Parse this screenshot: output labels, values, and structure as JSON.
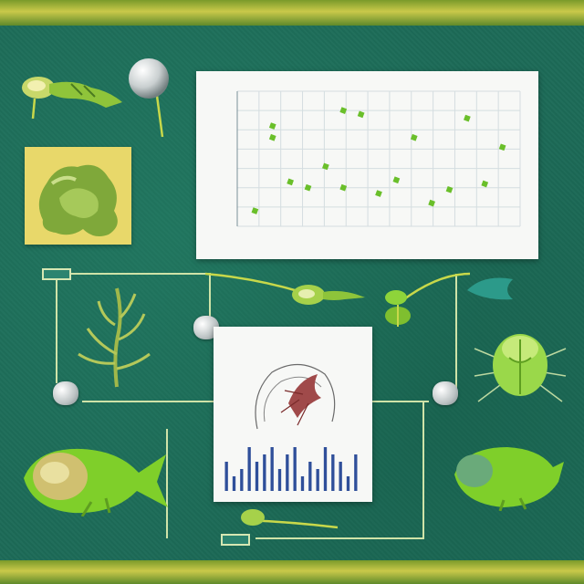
{
  "chart": {
    "title": "",
    "xlabel": "",
    "ytick_labels": [
      "",
      "",
      "",
      "",
      "",
      ""
    ],
    "xtick_labels": [
      "",
      "",
      "",
      "",
      "",
      "",
      "",
      "",
      "",
      "",
      "",
      "",
      ""
    ]
  },
  "chart_data": {
    "type": "scatter",
    "title": "",
    "xlabel": "",
    "ylabel": "",
    "grid": true,
    "legend": "none",
    "marker_color": "#6abf2a",
    "series": [
      {
        "x": [
          1,
          2,
          2,
          3,
          4,
          5,
          6,
          6,
          7,
          8,
          9,
          10,
          11,
          12,
          13,
          14,
          15
        ],
        "y": [
          0.8,
          4.6,
          5.2,
          2.3,
          2.0,
          3.1,
          6.0,
          2.0,
          5.8,
          1.7,
          2.4,
          4.6,
          1.2,
          1.9,
          5.6,
          2.2,
          4.1
        ]
      }
    ],
    "xlim": [
      0,
      16
    ],
    "ylim": [
      0,
      7
    ]
  },
  "doc": {
    "title": "",
    "subtitle": "",
    "bar_chart": {
      "type": "bar",
      "color": "#2f4f9a",
      "values": [
        4,
        2,
        3,
        6,
        4,
        5,
        6,
        3,
        5,
        6,
        2,
        4,
        3,
        6,
        5,
        4,
        2,
        5
      ]
    }
  },
  "colors": {
    "background": "#1d6b58",
    "band": "#c9c94a",
    "accent_green": "#8ed43a",
    "wire": "#cfe3a8"
  },
  "icons": {
    "creatures": [
      "larva-creature-icon",
      "egg-icon",
      "blob-creature-icon",
      "seaweed-icon",
      "fish-icon",
      "beetle-icon",
      "tadpole-icon"
    ]
  }
}
